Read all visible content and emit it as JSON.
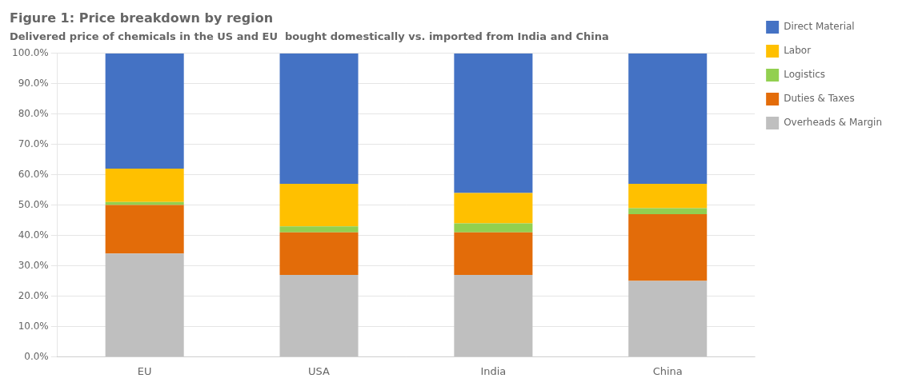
{
  "chart_data": {
    "type": "bar",
    "title": "Figure 1: Price breakdown by region",
    "subtitle": "Delivered price of chemicals in the US and EU  bought domestically vs. imported from India and China",
    "categories": [
      "EU",
      "USA",
      "India",
      "China"
    ],
    "series": [
      {
        "name": "Overheads & Margin",
        "color": "#bfbfbf",
        "values": [
          0.34,
          0.27,
          0.27,
          0.25
        ]
      },
      {
        "name": "Duties & Taxes",
        "color": "#e36c09",
        "values": [
          0.16,
          0.14,
          0.14,
          0.22
        ]
      },
      {
        "name": "Logistics",
        "color": "#92d050",
        "values": [
          0.01,
          0.02,
          0.03,
          0.02
        ]
      },
      {
        "name": "Labor",
        "color": "#ffc000",
        "values": [
          0.11,
          0.14,
          0.1,
          0.08
        ]
      },
      {
        "name": "Direct Material",
        "color": "#4472c4",
        "values": [
          0.38,
          0.43,
          0.46,
          0.43
        ]
      }
    ],
    "stacked": true,
    "ylim": [
      0.0,
      1.0
    ],
    "yticks": [
      {
        "value": 0.0,
        "label": "0.0%"
      },
      {
        "value": 0.1,
        "label": "10.0%"
      },
      {
        "value": 0.2,
        "label": "20.0%"
      },
      {
        "value": 0.3,
        "label": "30.0%"
      },
      {
        "value": 0.4,
        "label": "40.0%"
      },
      {
        "value": 0.5,
        "label": "50.0%"
      },
      {
        "value": 0.6,
        "label": "60.0%"
      },
      {
        "value": 0.7,
        "label": "70.0%"
      },
      {
        "value": 0.8,
        "label": "80.0%"
      },
      {
        "value": 0.9,
        "label": "90.0%"
      },
      {
        "value": 1.0,
        "label": "100.0%"
      }
    ],
    "grid": true,
    "legend": "right"
  }
}
